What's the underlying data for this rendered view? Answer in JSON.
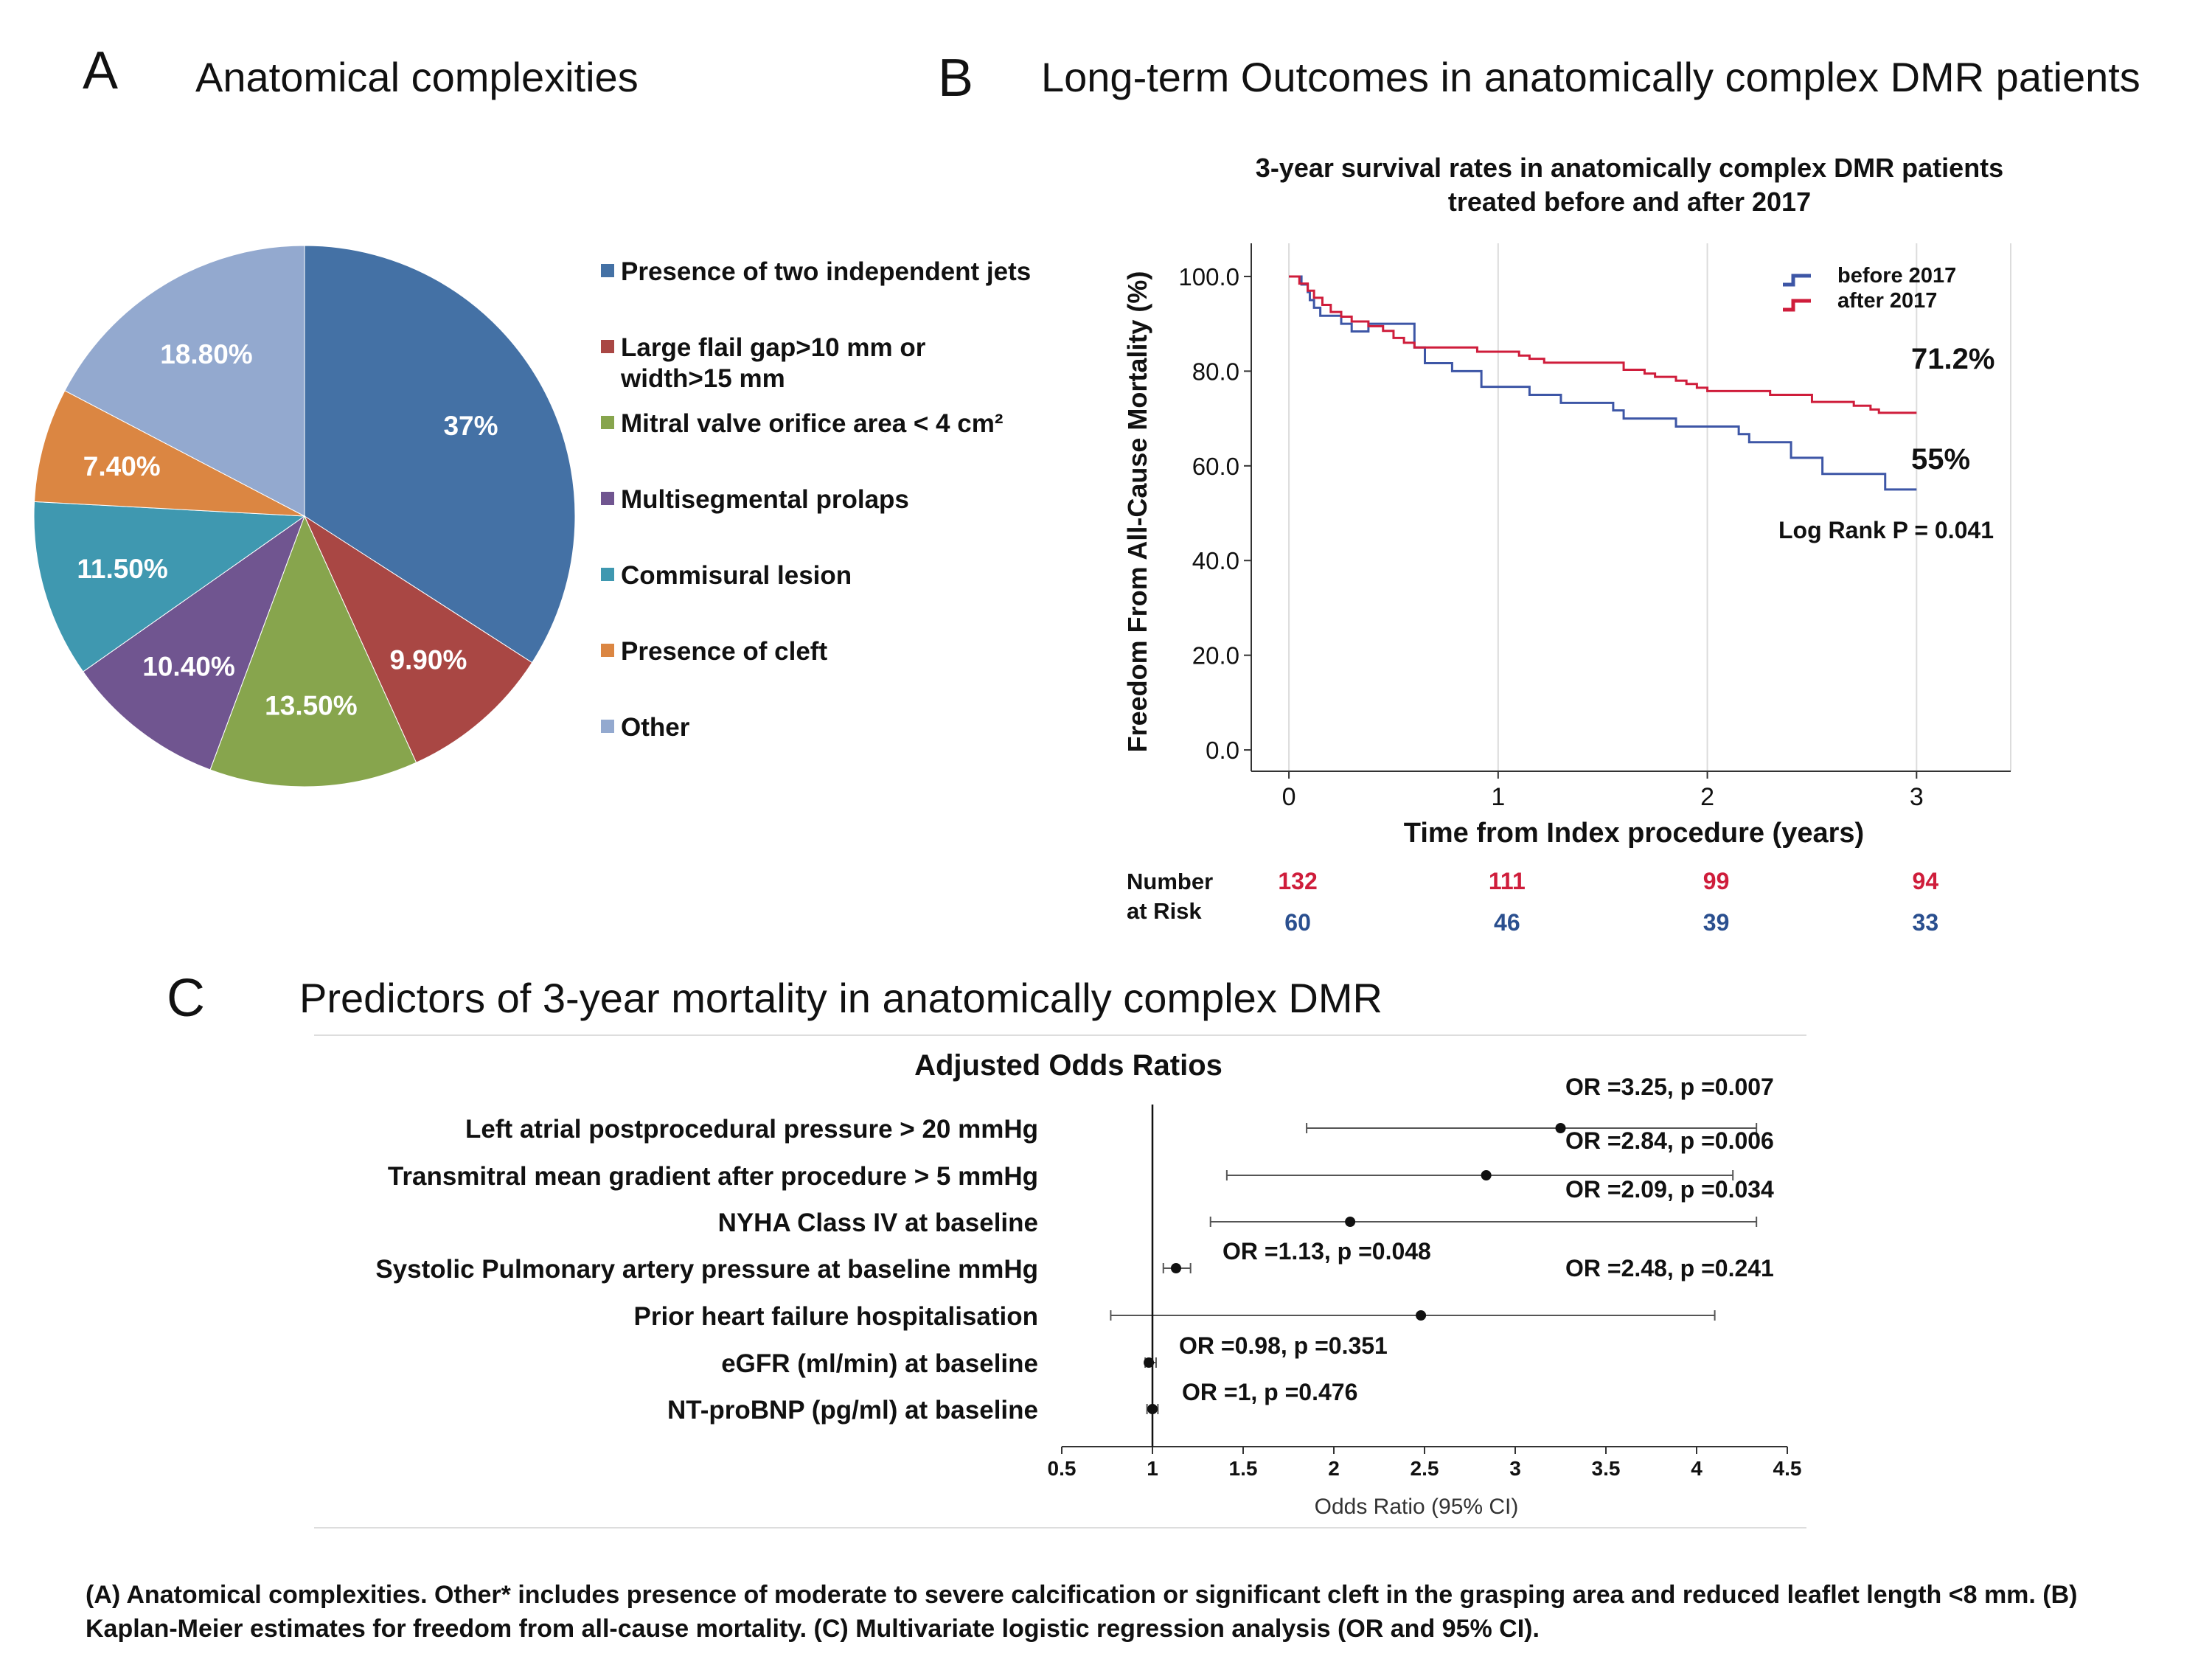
{
  "panel_a": {
    "letter": "A",
    "title": "Anatomical complexities"
  },
  "panel_b": {
    "letter": "B",
    "title": "Long-term Outcomes in anatomically complex DMR patients"
  },
  "panel_c": {
    "letter": "C",
    "title": "Predictors of 3-year mortality in anatomically complex DMR"
  },
  "caption": "(A) Anatomical complexities. Other* includes presence of moderate to severe calcification or significant cleft in the grasping area and reduced leaflet length <8 mm. (B) Kaplan-Meier estimates for freedom from all-cause mortality. (C) Multivariate logistic regression analysis (OR and 95% CI).",
  "chart_data": [
    {
      "type": "pie",
      "title": "",
      "categories": [
        "Presence of two independent jets",
        "Large flail gap>10 mm or width>15 mm",
        "Mitral valve orifice area < 4 cm²",
        "Multisegmental prolaps",
        "Commisural lesion",
        "Presence of cleft",
        "Other"
      ],
      "legend_lines": [
        [
          "Presence of two independent jets"
        ],
        [
          "Large flail gap>10 mm or",
          "width>15 mm"
        ],
        [
          "Mitral valve orifice area < 4 cm²"
        ],
        [
          "Multisegmental prolaps"
        ],
        [
          "Commisural lesion"
        ],
        [
          "Presence of cleft"
        ],
        [
          "Other"
        ]
      ],
      "values": [
        37,
        9.9,
        13.5,
        10.4,
        11.5,
        7.4,
        18.8
      ],
      "labels": [
        "37%",
        "9.90%",
        "13.50%",
        "10.40%",
        "11.50%",
        "7.40%",
        "18.80%"
      ],
      "colors": [
        "#4471a5",
        "#a94744",
        "#87a54d",
        "#705590",
        "#3f98b0",
        "#db8642",
        "#93a9cf"
      ],
      "legend_position": "right"
    },
    {
      "type": "line",
      "title": "3-year survival rates in anatomically complex DMR patients treated before and after 2017",
      "title_lines": [
        "3-year survival rates in anatomically complex DMR patients",
        "treated before and after 2017"
      ],
      "xlabel": "Time from Index procedure (years)",
      "ylabel": "Freedom From All-Cause Mortality (%)",
      "xlim": [
        -0.18,
        3.45
      ],
      "ylim": [
        -4.5,
        107
      ],
      "xticks": [
        "0",
        "1",
        "2",
        "3"
      ],
      "yticks": [
        "0.0",
        "20.0",
        "40.0",
        "60.0",
        "80.0",
        "100.0"
      ],
      "grid": "vertical",
      "legend_position": "top-right",
      "series": [
        {
          "name": "before 2017",
          "color": "#3d56a6",
          "x": [
            0,
            0.06,
            0.09,
            0.1,
            0.12,
            0.15,
            0.25,
            0.3,
            0.38,
            0.6,
            0.65,
            0.78,
            0.92,
            1.05,
            1.15,
            1.3,
            1.55,
            1.6,
            1.75,
            1.85,
            2.15,
            2.2,
            2.4,
            2.5,
            2.55,
            2.75,
            2.85,
            3.0
          ],
          "y": [
            100,
            98.3,
            96.7,
            95,
            93.4,
            91.7,
            90,
            88.4,
            90,
            85,
            81.7,
            80,
            76.7,
            76.7,
            75,
            73.3,
            71.7,
            70,
            70,
            68.3,
            66.7,
            65,
            61.7,
            61.7,
            58.3,
            58.3,
            55,
            55
          ]
        },
        {
          "name": "after 2017",
          "color": "#cf1d3b",
          "x": [
            0,
            0.05,
            0.09,
            0.12,
            0.16,
            0.2,
            0.25,
            0.3,
            0.38,
            0.45,
            0.5,
            0.55,
            0.6,
            0.75,
            0.9,
            1.05,
            1.1,
            1.15,
            1.22,
            1.3,
            1.45,
            1.6,
            1.7,
            1.75,
            1.85,
            1.9,
            1.95,
            2.0,
            2.05,
            2.15,
            2.3,
            2.5,
            2.6,
            2.7,
            2.78,
            2.82,
            3.0
          ],
          "y": [
            100,
            98.5,
            97,
            95.5,
            94,
            92.5,
            91.5,
            90.5,
            89.5,
            88.5,
            87,
            86,
            85,
            85,
            84.1,
            84.1,
            83.3,
            82.6,
            81.8,
            81.8,
            81.8,
            80.3,
            79.5,
            78.8,
            78,
            77.3,
            76.5,
            75.8,
            75.8,
            75.8,
            75,
            73.5,
            73.5,
            72.7,
            71.9,
            71.2,
            71.2
          ]
        }
      ],
      "annotations": [
        "71.2%",
        "55%",
        "Log Rank P = 0.041"
      ],
      "number_at_risk": {
        "label_lines": [
          "Number",
          "at Risk"
        ],
        "after_2017": [
          "132",
          "111",
          "99",
          "94"
        ],
        "before_2017": [
          "60",
          "46",
          "39",
          "33"
        ]
      }
    },
    {
      "type": "scatter",
      "title": "Adjusted Odds Ratios",
      "xlabel": "Odds Ratio (95% CI)",
      "ylabel": "",
      "xlim": [
        0.5,
        4.5
      ],
      "xticks": [
        "0.5",
        "1",
        "1.5",
        "2",
        "2.5",
        "3",
        "3.5",
        "4",
        "4.5"
      ],
      "reference_line": 1,
      "grid": "off",
      "categories": [
        "Left atrial postprocedural pressure > 20 mmHg",
        "Transmitral mean gradient after procedure > 5 mmHg",
        "NYHA Class IV at baseline",
        "Systolic Pulmonary artery pressure at baseline mmHg",
        "Prior heart failure hospitalisation",
        "eGFR (ml/min) at baseline",
        "NT-proBNP (pg/ml) at baseline"
      ],
      "or": [
        3.25,
        2.84,
        2.09,
        1.13,
        2.48,
        0.98,
        1.0
      ],
      "ci_low": [
        1.85,
        1.41,
        1.32,
        1.06,
        0.77,
        0.96,
        0.97
      ],
      "ci_high": [
        4.33,
        4.2,
        4.33,
        1.21,
        4.1,
        1.02,
        1.03
      ],
      "labels": [
        "OR =3.25, p =0.007",
        "OR =2.84, p =0.006",
        "OR =2.09, p =0.034",
        "OR =1.13, p =0.048",
        "OR =2.48, p =0.241",
        "OR =0.98, p =0.351",
        "OR =1, p =0.476"
      ]
    }
  ]
}
